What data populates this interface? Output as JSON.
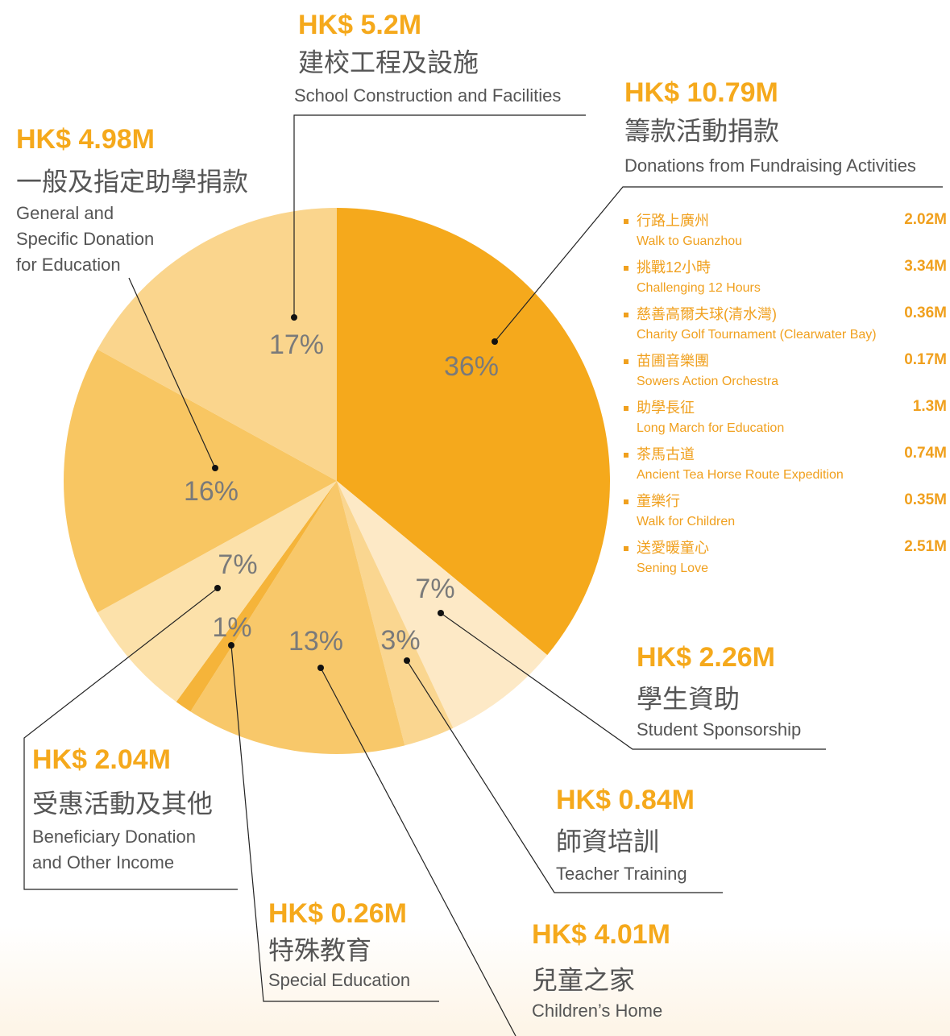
{
  "chart_data": {
    "type": "pie",
    "categories": [
      "籌款活動捐款",
      "學生資助",
      "師資培訓",
      "兒童之家",
      "特殊教育",
      "受惠活動及其他",
      "一般及指定助學捐款",
      "建校工程及設施"
    ],
    "categories_en": [
      [
        "Donations from Fundraising Activities"
      ],
      [
        "Student Sponsorship"
      ],
      [
        "Teacher Training"
      ],
      [
        "Children’s Home"
      ],
      [
        "Special Education"
      ],
      [
        "Beneficiary Donation",
        "and Other Income"
      ],
      [
        "General and",
        "Specific Donation",
        "for Education"
      ],
      [
        "School Construction and Facilities"
      ]
    ],
    "values": [
      36,
      7,
      3,
      13,
      1,
      7,
      16,
      17
    ],
    "value_labels": [
      "36%",
      "7%",
      "3%",
      "13%",
      "1%",
      "7%",
      "16%",
      "17%"
    ],
    "amount_labels": [
      "HK$ 10.79M",
      "HK$ 2.26M",
      "HK$ 0.84M",
      "HK$ 4.01M",
      "HK$ 0.26M",
      "HK$ 2.04M",
      "HK$ 4.98M",
      "HK$ 5.2M"
    ],
    "colors": [
      "#f5a91c",
      "#fde9c6",
      "#fad690",
      "#f8c86a",
      "#f5b43a",
      "#fce1aa",
      "#f8c662",
      "#fad58d"
    ],
    "breakdown": [
      {
        "name": "行路上廣州",
        "name_en": "Walk to Guanzhou",
        "amount": "2.02M"
      },
      {
        "name": "挑戰12小時",
        "name_en": "Challenging 12 Hours",
        "amount": "3.34M"
      },
      {
        "name": "慈善高爾夫球(清水灣)",
        "name_en": "Charity Golf Tournament (Clearwater Bay)",
        "amount": "0.36M"
      },
      {
        "name": "苗圃音樂團",
        "name_en": "Sowers Action Orchestra",
        "amount": "0.17M"
      },
      {
        "name": "助學長征",
        "name_en": "Long March for Education",
        "amount": "1.3M"
      },
      {
        "name": "茶馬古道",
        "name_en": "Ancient Tea Horse Route Expedition",
        "amount": "0.74M"
      },
      {
        "name": "童樂行",
        "name_en": "Walk for Children",
        "amount": "0.35M"
      },
      {
        "name": "送愛暖童心",
        "name_en": "Sening Love",
        "amount": "2.51M"
      }
    ]
  }
}
